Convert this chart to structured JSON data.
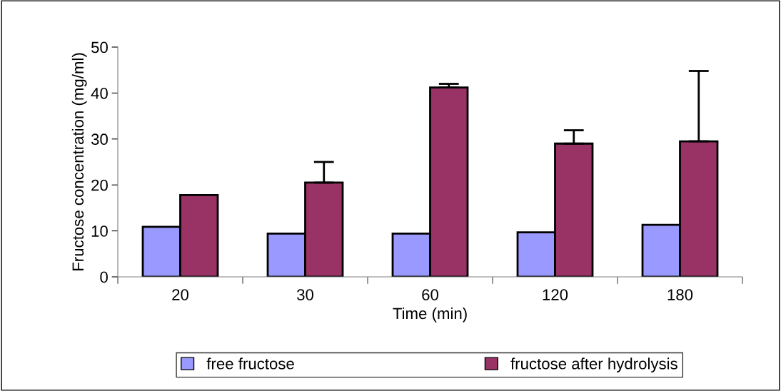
{
  "chart_data": {
    "type": "bar",
    "xlabel": "Time (min)",
    "ylabel": "Fructose concentration (mg/ml)",
    "categories": [
      "20",
      "30",
      "60",
      "120",
      "180"
    ],
    "series": [
      {
        "name": "free fructose",
        "color": "#9999ff",
        "values": [
          10.9,
          9.4,
          9.4,
          9.7,
          11.3
        ]
      },
      {
        "name": "fructose after hydrolysis",
        "color": "#993366",
        "values": [
          17.8,
          20.5,
          41.2,
          29.0,
          29.5
        ],
        "errors": [
          null,
          [
            20.5,
            25.0
          ],
          [
            41.2,
            42.0
          ],
          [
            29.0,
            31.9
          ],
          [
            29.5,
            44.8
          ]
        ]
      }
    ],
    "ylim": [
      0,
      50
    ],
    "yticks": [
      0,
      10,
      20,
      30,
      40,
      50
    ],
    "grid": false,
    "legend": "bottom"
  }
}
